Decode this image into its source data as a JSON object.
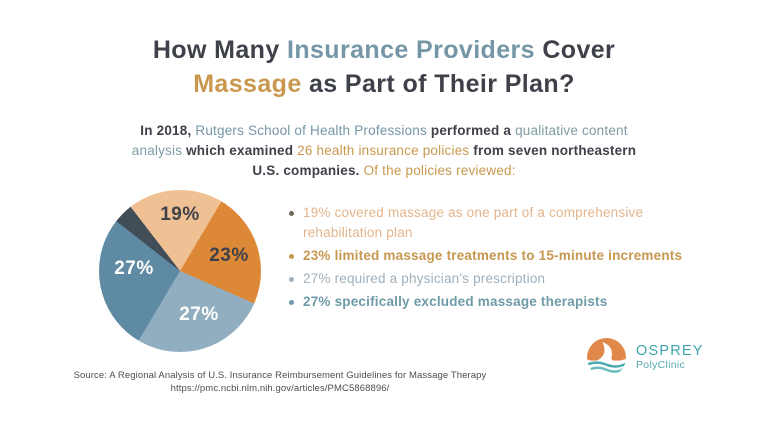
{
  "colors": {
    "dark": "#3e4149",
    "blue_gray": "#7596a6",
    "teal_gray": "#7d9ca3",
    "gold": "#c9984e"
  },
  "title": {
    "lines": [
      [
        {
          "text": "How Many ",
          "color": "dark",
          "bold": true
        },
        {
          "text": "Insurance Providers",
          "color": "blue_gray",
          "bold": true
        },
        {
          "text": " Cover",
          "color": "dark",
          "bold": true
        }
      ],
      [
        {
          "text": "Massage",
          "color": "gold",
          "bold": true
        },
        {
          "text": " as Part of Their Plan?",
          "color": "dark",
          "bold": true
        }
      ]
    ]
  },
  "intro": {
    "lines": [
      [
        {
          "text": "In 2018, ",
          "color": "dark",
          "bold": true
        },
        {
          "text": "Rutgers School of Health Professions",
          "color": "blue_gray",
          "bold": false
        },
        {
          "text": " performed a ",
          "color": "dark",
          "bold": true
        },
        {
          "text": "qualitative content",
          "color": "teal_gray",
          "bold": false
        }
      ],
      [
        {
          "text": "analysis",
          "color": "teal_gray",
          "bold": false
        },
        {
          "text": " which examined ",
          "color": "dark",
          "bold": true
        },
        {
          "text": "26 health insurance policies",
          "color": "gold",
          "bold": false
        },
        {
          "text": " from seven northeastern",
          "color": "dark",
          "bold": true
        }
      ],
      [
        {
          "text": "U.S. companies. ",
          "color": "dark",
          "bold": true
        },
        {
          "text": "Of the policies reviewed:",
          "color": "gold",
          "bold": false
        }
      ]
    ]
  },
  "chart_data": {
    "type": "pie",
    "title": "Coverage findings among 26 reviewed health insurance policies",
    "start_angle_deg": 308,
    "legend": "none",
    "slices": [
      {
        "label": "",
        "value": 4,
        "color": "#414e58",
        "label_color": "",
        "label_x": null,
        "label_y": null
      },
      {
        "label": "19%",
        "value": 19,
        "color": "#eec094",
        "label_color": "#3e4149",
        "label_x": 81,
        "label_y": 25
      },
      {
        "label": "23%",
        "value": 23,
        "color": "#dd8836",
        "label_color": "#3e4149",
        "label_x": 130,
        "label_y": 66
      },
      {
        "label": "27%",
        "value": 27,
        "color": "#91aec1",
        "label_color": "#ffffff",
        "label_x": 100,
        "label_y": 125
      },
      {
        "label": "27%",
        "value": 27,
        "color": "#5f8aa4",
        "label_color": "#ffffff",
        "label_x": 35,
        "label_y": 79
      }
    ]
  },
  "bullets": [
    {
      "text": "19% covered massage as one part of a comprehensive rehabilitation plan",
      "color": "#e3b58c",
      "bold": false,
      "dot_color": "#6f675c"
    },
    {
      "text": "23% limited massage treatments to 15-minute increments",
      "color": "#c6974f",
      "bold": true,
      "dot_color": "#c6974f"
    },
    {
      "text": "27% required a physician's prescription",
      "color": "#9fb0bc",
      "bold": false,
      "dot_color": "#9fb0bc"
    },
    {
      "text": "27% specifically excluded massage therapists",
      "color": "#6f9aa8",
      "bold": true,
      "dot_color": "#6f9aa8"
    }
  ],
  "source": {
    "line1": "Source: A Regional Analysis of U.S. Insurance Reimbursement Guidelines for Massage Therapy",
    "line2": "https://pmc.ncbi.nlm.nih.gov/articles/PMC5868896/"
  },
  "logo": {
    "name": "OSPREY",
    "subname": "PolyClinic",
    "teal": "#3fa3ab",
    "teal_light": "#56a8ae",
    "orange": "#e0874a"
  }
}
